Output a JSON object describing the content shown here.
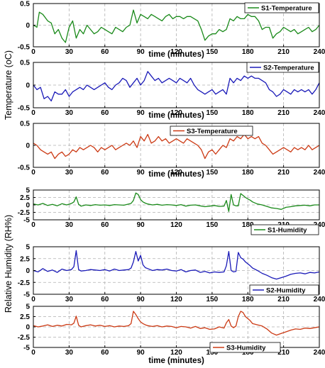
{
  "figure": {
    "temperature_ylabel": "Temperature (oC)",
    "humidity_ylabel": "Relative Humidity (RH%)"
  },
  "chart_data": [
    {
      "type": "line",
      "series": [
        {
          "name": "S1-Temperature",
          "color": "#1a8a1a",
          "x": [
            0,
            3,
            5,
            8,
            12,
            15,
            18,
            21,
            24,
            27,
            30,
            33,
            36,
            39,
            42,
            45,
            48,
            51,
            54,
            57,
            60,
            63,
            66,
            69,
            72,
            75,
            78,
            81,
            84,
            87,
            90,
            93,
            96,
            99,
            102,
            105,
            108,
            111,
            114,
            117,
            120,
            123,
            126,
            129,
            132,
            135,
            138,
            141,
            144,
            147,
            150,
            153,
            156,
            159,
            162,
            165,
            168,
            171,
            174,
            177,
            180,
            183,
            186,
            189,
            192,
            195,
            198,
            201,
            204,
            207,
            210,
            213,
            216,
            219,
            222,
            225,
            228,
            231,
            234,
            237,
            240
          ],
          "y": [
            0.0,
            -0.05,
            0.3,
            0.25,
            0.1,
            0.05,
            -0.2,
            -0.1,
            -0.3,
            -0.4,
            -0.05,
            0.1,
            -0.3,
            -0.1,
            -0.2,
            0.0,
            -0.1,
            -0.2,
            -0.15,
            -0.05,
            -0.1,
            -0.15,
            -0.2,
            -0.05,
            -0.1,
            -0.15,
            -0.05,
            0.0,
            0.35,
            0.05,
            0.25,
            0.2,
            0.15,
            0.25,
            0.2,
            0.15,
            0.1,
            0.2,
            0.25,
            0.15,
            0.2,
            0.2,
            0.15,
            0.2,
            0.2,
            0.15,
            0.1,
            -0.1,
            -0.35,
            -0.25,
            -0.2,
            -0.2,
            -0.1,
            -0.15,
            -0.1,
            0.15,
            0.1,
            0.2,
            0.15,
            0.15,
            0.25,
            0.2,
            0.2,
            0.1,
            -0.1,
            -0.05,
            -0.05,
            -0.3,
            -0.2,
            -0.15,
            -0.05,
            -0.1,
            -0.15,
            -0.1,
            -0.2,
            -0.15,
            -0.1,
            -0.05,
            -0.15,
            -0.1,
            0.0
          ]
        }
      ],
      "xlabel": "time (minutes)",
      "xticks": [
        "0",
        "30",
        "60",
        "90",
        "120",
        "150",
        "180",
        "210",
        "240"
      ],
      "yticks": [
        "0.5",
        "0",
        "-0.5"
      ],
      "xlim": [
        0,
        240
      ],
      "ylim": [
        -0.5,
        0.5
      ],
      "grid": true,
      "legend": "top-right"
    },
    {
      "type": "line",
      "series": [
        {
          "name": "S2-Temperature",
          "color": "#1a1ab8",
          "x": [
            0,
            3,
            6,
            9,
            12,
            15,
            18,
            21,
            24,
            27,
            30,
            33,
            36,
            39,
            42,
            45,
            48,
            51,
            54,
            57,
            60,
            63,
            66,
            69,
            72,
            75,
            78,
            81,
            84,
            87,
            90,
            93,
            96,
            99,
            102,
            105,
            108,
            111,
            114,
            117,
            120,
            123,
            126,
            129,
            132,
            135,
            138,
            141,
            144,
            147,
            150,
            153,
            156,
            159,
            162,
            165,
            168,
            171,
            174,
            177,
            180,
            183,
            186,
            189,
            192,
            195,
            198,
            201,
            204,
            207,
            210,
            213,
            216,
            219,
            222,
            225,
            228,
            231,
            234,
            237,
            240
          ],
          "y": [
            0.0,
            -0.1,
            -0.05,
            -0.3,
            -0.25,
            -0.35,
            -0.15,
            -0.2,
            -0.2,
            -0.1,
            -0.25,
            -0.15,
            -0.1,
            -0.05,
            -0.1,
            0.0,
            -0.05,
            -0.1,
            -0.05,
            0.0,
            0.05,
            -0.05,
            -0.1,
            0.0,
            0.05,
            0.15,
            0.1,
            -0.05,
            0.05,
            0.15,
            0.0,
            0.1,
            0.3,
            0.2,
            0.1,
            0.15,
            0.05,
            0.1,
            0.15,
            0.1,
            0.05,
            0.15,
            0.1,
            0.05,
            0.15,
            0.0,
            -0.1,
            -0.15,
            -0.2,
            -0.15,
            -0.1,
            -0.2,
            -0.15,
            -0.1,
            -0.2,
            0.15,
            0.05,
            0.15,
            0.1,
            0.2,
            0.15,
            0.2,
            0.15,
            0.15,
            0.1,
            0.05,
            -0.1,
            -0.15,
            -0.25,
            -0.2,
            -0.1,
            -0.15,
            -0.2,
            -0.1,
            -0.15,
            -0.1,
            -0.15,
            -0.1,
            -0.2,
            -0.1,
            0.05
          ]
        }
      ],
      "xlabel": "time (minutes)",
      "xticks": [
        "0",
        "30",
        "60",
        "90",
        "120",
        "150",
        "180",
        "210",
        "240"
      ],
      "yticks": [
        "0.5",
        "0",
        "-0.5"
      ],
      "xlim": [
        0,
        240
      ],
      "ylim": [
        -0.5,
        0.5
      ],
      "grid": true,
      "legend": "top-right"
    },
    {
      "type": "line",
      "series": [
        {
          "name": "S3-Temperature",
          "color": "#cc3a14",
          "x": [
            0,
            3,
            6,
            9,
            12,
            15,
            18,
            21,
            24,
            27,
            30,
            33,
            36,
            39,
            42,
            45,
            48,
            51,
            54,
            57,
            60,
            63,
            66,
            69,
            72,
            75,
            78,
            81,
            84,
            87,
            90,
            93,
            96,
            99,
            102,
            105,
            108,
            111,
            114,
            117,
            120,
            123,
            126,
            129,
            132,
            135,
            138,
            141,
            144,
            147,
            150,
            153,
            156,
            159,
            162,
            165,
            168,
            171,
            174,
            177,
            180,
            183,
            186,
            189,
            192,
            195,
            198,
            201,
            204,
            207,
            210,
            213,
            216,
            219,
            222,
            225,
            228,
            231,
            234,
            237,
            240
          ],
          "y": [
            0.05,
            0.0,
            -0.1,
            -0.15,
            -0.2,
            -0.15,
            -0.3,
            -0.2,
            -0.15,
            -0.25,
            -0.2,
            -0.1,
            -0.15,
            -0.05,
            -0.1,
            -0.05,
            0.0,
            -0.05,
            -0.15,
            -0.05,
            -0.1,
            -0.05,
            0.0,
            -0.1,
            -0.05,
            0.0,
            0.05,
            0.0,
            0.1,
            -0.05,
            0.2,
            0.1,
            0.25,
            0.05,
            0.1,
            0.2,
            0.1,
            0.15,
            0.05,
            0.1,
            0.15,
            0.1,
            0.05,
            0.15,
            0.1,
            0.05,
            0.0,
            -0.1,
            -0.3,
            -0.15,
            -0.1,
            -0.2,
            -0.1,
            0.0,
            -0.05,
            0.15,
            0.1,
            0.2,
            0.15,
            0.25,
            0.15,
            0.2,
            0.15,
            0.2,
            0.05,
            0.0,
            -0.1,
            -0.2,
            -0.15,
            -0.1,
            -0.05,
            -0.1,
            -0.15,
            -0.05,
            -0.1,
            -0.05,
            -0.1,
            0.0,
            -0.1,
            -0.05,
            0.0
          ]
        }
      ],
      "xlabel": "time (minutes)",
      "xticks": [
        "0",
        "30",
        "60",
        "90",
        "120",
        "150",
        "180",
        "210",
        "240"
      ],
      "yticks": [
        "0.5",
        "0",
        "-0.5"
      ],
      "xlim": [
        0,
        240
      ],
      "ylim": [
        -0.5,
        0.5
      ],
      "grid": true,
      "legend": "top-center"
    },
    {
      "type": "line",
      "series": [
        {
          "name": "S1-Humidity",
          "color": "#1a8a1a",
          "x": [
            0,
            4,
            8,
            12,
            16,
            20,
            24,
            28,
            32,
            34,
            36,
            38,
            40,
            44,
            48,
            52,
            56,
            60,
            64,
            68,
            72,
            76,
            80,
            82,
            84,
            86,
            88,
            90,
            92,
            94,
            96,
            100,
            104,
            108,
            112,
            116,
            120,
            124,
            128,
            132,
            136,
            140,
            144,
            148,
            152,
            156,
            160,
            162,
            164,
            166,
            168,
            170,
            172,
            174,
            176,
            178,
            180,
            182,
            184,
            188,
            192,
            196,
            200,
            204,
            208,
            212,
            216,
            220,
            224,
            228,
            232,
            236,
            240
          ],
          "y": [
            0.3,
            0.0,
            0.5,
            -0.2,
            0.2,
            -0.3,
            0.4,
            0.0,
            0.5,
            1.0,
            2.7,
            0.2,
            -0.4,
            0.0,
            -0.2,
            0.1,
            -0.1,
            0.0,
            -0.2,
            0.1,
            0.0,
            -0.1,
            0.3,
            0.5,
            1.5,
            4.0,
            3.5,
            1.8,
            1.0,
            0.6,
            0.3,
            0.0,
            0.2,
            -0.1,
            0.1,
            0.0,
            -0.2,
            0.1,
            -0.4,
            -0.1,
            0.0,
            -0.3,
            -0.6,
            -0.4,
            -0.2,
            -0.5,
            -0.4,
            1.5,
            -2.2,
            3.5,
            0.0,
            -0.3,
            -0.3,
            3.8,
            3.2,
            2.5,
            2.0,
            1.6,
            1.0,
            0.3,
            0.0,
            -0.5,
            -1.0,
            -1.2,
            -1.5,
            -0.8,
            -0.6,
            -0.3,
            -0.2,
            -0.1,
            -0.3,
            0.0,
            0.0
          ]
        }
      ],
      "xlabel": "time (minutes)",
      "xticks": [
        "0",
        "30",
        "60",
        "90",
        "120",
        "150",
        "180",
        "210",
        "240"
      ],
      "yticks": [
        "5",
        "2.5",
        "0",
        "-2.5",
        "-5"
      ],
      "xlim": [
        0,
        240
      ],
      "ylim": [
        -5,
        5
      ],
      "grid": true,
      "legend": "bottom-right"
    },
    {
      "type": "line",
      "series": [
        {
          "name": "S2-Humidity",
          "color": "#1a1ab8",
          "x": [
            0,
            4,
            8,
            12,
            16,
            20,
            24,
            28,
            32,
            34,
            36,
            38,
            40,
            44,
            48,
            52,
            56,
            60,
            64,
            68,
            72,
            76,
            80,
            82,
            84,
            86,
            88,
            90,
            92,
            94,
            96,
            100,
            104,
            108,
            112,
            116,
            120,
            124,
            128,
            132,
            136,
            140,
            144,
            148,
            152,
            156,
            160,
            162,
            164,
            166,
            168,
            170,
            172,
            174,
            176,
            178,
            180,
            182,
            184,
            188,
            192,
            196,
            200,
            204,
            208,
            212,
            216,
            220,
            224,
            228,
            232,
            236,
            240
          ],
          "y": [
            0.0,
            -0.3,
            0.4,
            -0.2,
            0.1,
            -0.4,
            0.3,
            0.0,
            0.2,
            0.8,
            4.2,
            0.2,
            -0.1,
            0.0,
            0.2,
            0.1,
            0.0,
            0.2,
            -0.1,
            0.3,
            0.0,
            0.1,
            0.2,
            0.5,
            1.8,
            4.0,
            2.0,
            3.2,
            1.2,
            0.6,
            0.4,
            0.0,
            0.2,
            0.1,
            0.3,
            0.0,
            -0.1,
            0.2,
            -0.3,
            0.0,
            0.1,
            -0.4,
            -0.2,
            -0.5,
            -0.3,
            -0.4,
            -0.3,
            1.0,
            4.0,
            0.0,
            -0.3,
            -0.2,
            3.8,
            2.7,
            2.4,
            1.8,
            1.4,
            1.0,
            0.5,
            0.0,
            -0.6,
            -1.0,
            -1.5,
            -1.8,
            -1.5,
            -1.2,
            -0.8,
            -0.6,
            -0.5,
            -0.7,
            -0.4,
            -0.5,
            -0.3
          ]
        }
      ],
      "xlabel": "time (minutes)",
      "xticks": [
        "0",
        "30",
        "60",
        "90",
        "120",
        "150",
        "180",
        "210",
        "240"
      ],
      "yticks": [
        "5",
        "2.5",
        "0",
        "-2.5",
        "-5"
      ],
      "xlim": [
        0,
        240
      ],
      "ylim": [
        -5,
        5
      ],
      "grid": true,
      "legend": "bottom-right"
    },
    {
      "type": "line",
      "series": [
        {
          "name": "S3-Humidity",
          "color": "#cc3a14",
          "x": [
            0,
            4,
            8,
            12,
            16,
            20,
            24,
            28,
            32,
            34,
            36,
            38,
            40,
            44,
            48,
            52,
            56,
            60,
            64,
            68,
            72,
            76,
            80,
            82,
            84,
            86,
            88,
            90,
            92,
            94,
            96,
            100,
            104,
            108,
            112,
            116,
            120,
            124,
            128,
            132,
            136,
            140,
            144,
            148,
            152,
            156,
            160,
            162,
            164,
            166,
            168,
            170,
            172,
            174,
            176,
            178,
            180,
            182,
            184,
            188,
            192,
            196,
            200,
            204,
            208,
            212,
            216,
            220,
            224,
            228,
            232,
            236,
            240
          ],
          "y": [
            0.3,
            0.0,
            0.2,
            0.5,
            0.1,
            0.4,
            0.2,
            0.6,
            0.5,
            0.9,
            2.6,
            0.4,
            0.0,
            0.3,
            0.5,
            0.2,
            0.4,
            0.1,
            0.3,
            0.0,
            0.2,
            0.1,
            0.3,
            0.8,
            3.8,
            3.0,
            2.0,
            1.2,
            0.8,
            0.5,
            0.3,
            0.1,
            0.3,
            0.0,
            0.2,
            0.1,
            -0.2,
            0.1,
            0.0,
            -0.3,
            0.1,
            -0.4,
            -0.2,
            -0.6,
            -0.5,
            0.0,
            -0.3,
            1.0,
            1.8,
            0.2,
            -0.2,
            0.2,
            2.5,
            3.8,
            3.5,
            2.5,
            2.0,
            1.5,
            0.8,
            0.5,
            0.2,
            -0.5,
            -1.5,
            -2.0,
            -1.6,
            -1.2,
            -0.8,
            -0.5,
            -0.6,
            -0.3,
            -0.4,
            -0.2,
            0.0
          ]
        }
      ],
      "xlabel": "time (minutes)",
      "xticks": [
        "0",
        "30",
        "60",
        "90",
        "120",
        "150",
        "180",
        "210",
        "240"
      ],
      "yticks": [
        "5",
        "2.5",
        "0",
        "-2.5",
        "-5"
      ],
      "xlim": [
        0,
        240
      ],
      "ylim": [
        -5,
        5
      ],
      "grid": true,
      "legend": "bottom-center"
    }
  ]
}
